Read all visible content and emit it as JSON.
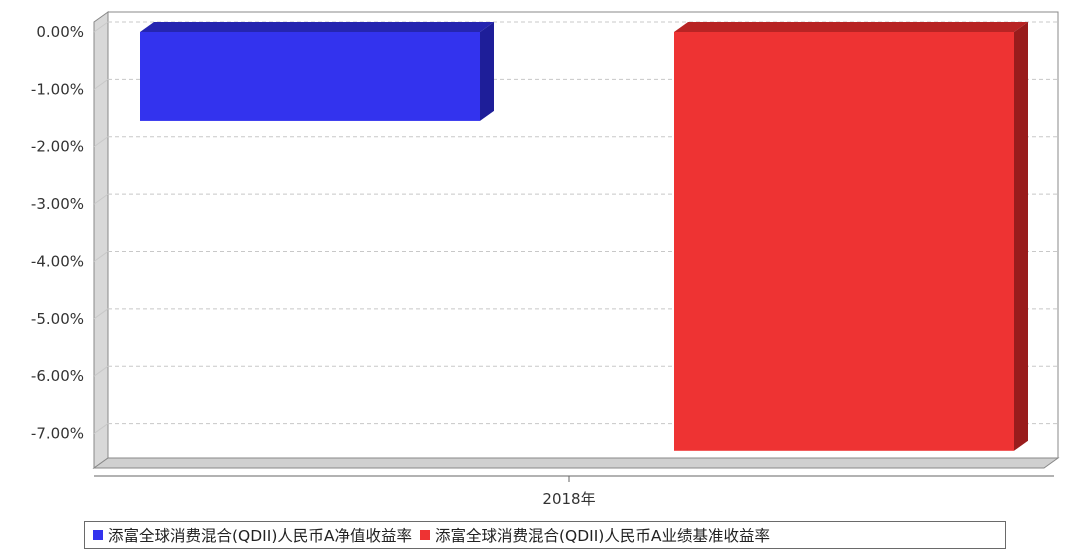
{
  "chart_data": {
    "type": "bar",
    "categories": [
      "2018年"
    ],
    "series": [
      {
        "name": "添富全球消费混合(QDII)人民币A净值收益率",
        "values": [
          -1.55
        ],
        "color": "#3333ee"
      },
      {
        "name": "添富全球消费混合(QDII)人民币A业绩基准收益率",
        "values": [
          -7.3
        ],
        "color": "#ee3333"
      }
    ],
    "yticks": [
      0,
      -1,
      -2,
      -3,
      -4,
      -5,
      -6,
      -7
    ],
    "ytick_labels": [
      "0.00%",
      "-1.00%",
      "-2.00%",
      "-3.00%",
      "-4.00%",
      "-5.00%",
      "-6.00%",
      "-7.00%"
    ],
    "ylim": [
      -7.6,
      0
    ],
    "grid": true,
    "legend_position": "bottom"
  }
}
